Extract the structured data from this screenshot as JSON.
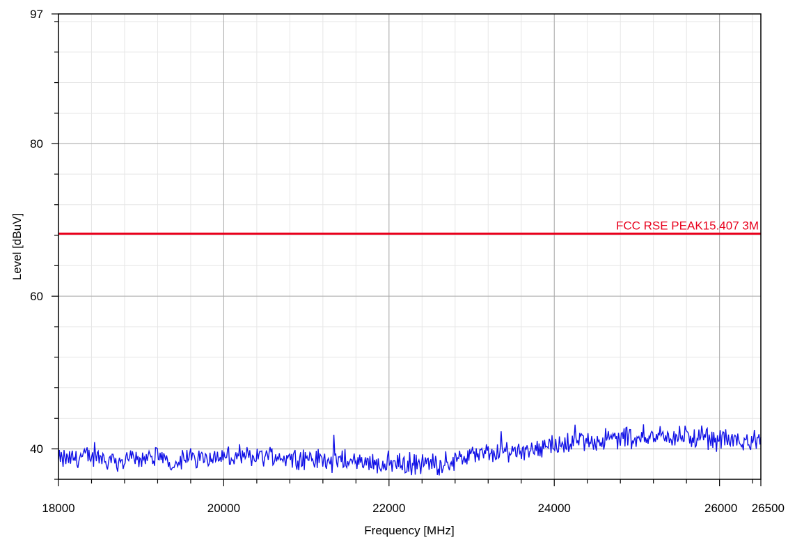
{
  "chart_data": {
    "type": "line",
    "title": "",
    "xlabel": "Frequency [MHz]",
    "ylabel": "Level [dBuV]",
    "xlim": [
      18000,
      26500
    ],
    "ylim": [
      36,
      97
    ],
    "log_x": false,
    "grid": true,
    "x_ticks": [
      {
        "value": 18000,
        "label": "18000"
      },
      {
        "value": 20000,
        "label": "20000"
      },
      {
        "value": 22000,
        "label": "22000"
      },
      {
        "value": 24000,
        "label": "24000"
      },
      {
        "value": 26000,
        "label": "26000"
      },
      {
        "value": 26500,
        "label": "26500"
      }
    ],
    "y_ticks": [
      {
        "value": 40,
        "label": "40"
      },
      {
        "value": 60,
        "label": "60"
      },
      {
        "value": 80,
        "label": "80"
      },
      {
        "value": 97,
        "label": "97"
      }
    ],
    "limit_line": {
      "label": "FCC RSE PEAK15.407 3M",
      "y": 68.2,
      "color": "#e8001c"
    },
    "series": [
      {
        "color": "#1010e6",
        "x": [
          18000,
          18200,
          18400,
          18600,
          18800,
          19000,
          19200,
          19400,
          19600,
          19800,
          20000,
          20200,
          20400,
          20600,
          20800,
          21000,
          21200,
          21400,
          21600,
          21800,
          22000,
          22200,
          22400,
          22600,
          22800,
          23000,
          23200,
          23400,
          23600,
          23800,
          24000,
          24200,
          24400,
          24600,
          24800,
          25000,
          25200,
          25400,
          25600,
          25800,
          26000,
          26200,
          26500
        ],
        "y": [
          38.5,
          38.8,
          39.0,
          38.6,
          38.4,
          38.9,
          38.7,
          38.3,
          38.8,
          39.0,
          38.9,
          38.7,
          39.1,
          39.0,
          38.9,
          38.7,
          38.5,
          38.4,
          38.3,
          38.1,
          38.2,
          38.0,
          38.0,
          38.1,
          38.5,
          39.1,
          39.4,
          39.6,
          39.9,
          40.2,
          40.5,
          40.8,
          41.0,
          41.2,
          41.4,
          41.6,
          41.7,
          41.6,
          41.5,
          41.3,
          41.2,
          41.0,
          40.9
        ]
      }
    ]
  }
}
